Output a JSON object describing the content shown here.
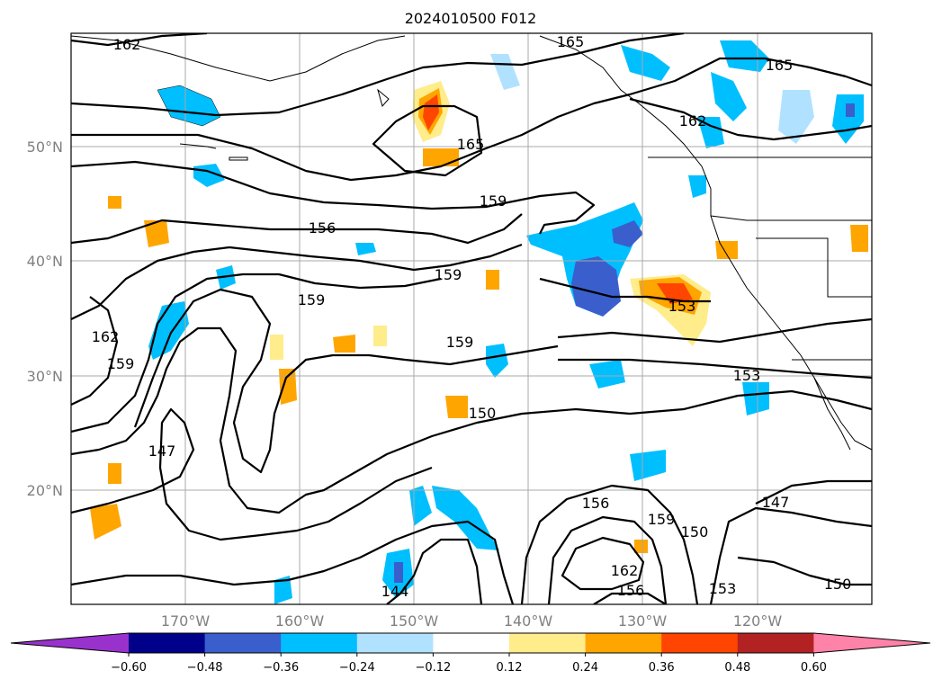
{
  "title": "2024010500 F012",
  "lat_labels": [
    "50°N",
    "40°N",
    "30°N",
    "20°N"
  ],
  "lon_labels": [
    "170°W",
    "160°W",
    "150°W",
    "140°W",
    "130°W",
    "120°W"
  ],
  "colorbar": {
    "ticks": [
      "−0.60",
      "−0.48",
      "−0.36",
      "−0.24",
      "−0.12",
      "0.12",
      "0.24",
      "0.36",
      "0.48",
      "0.60"
    ],
    "colors": [
      "#9932cc",
      "#00008b",
      "#3a5fcd",
      "#00bfff",
      "#b0e2ff",
      "#ffffff",
      "#ffec8b",
      "#ffa500",
      "#ff4500",
      "#b22222",
      "#ff83a8"
    ]
  },
  "contour_labels": [
    "162",
    "165",
    "165",
    "165",
    "162",
    "159",
    "156",
    "159",
    "159",
    "159",
    "162",
    "159",
    "153",
    "153",
    "150",
    "147",
    "159",
    "156",
    "150",
    "162",
    "156",
    "153",
    "147",
    "150",
    "144"
  ]
}
